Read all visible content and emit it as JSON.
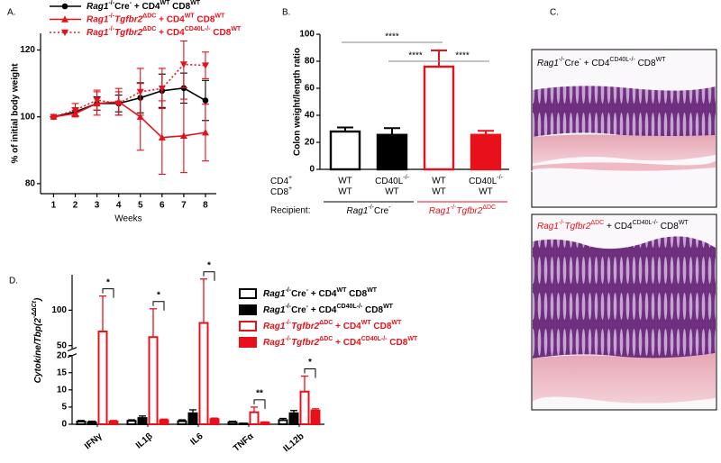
{
  "chart_data": [
    {
      "type": "line",
      "panel_label": "A.",
      "y_label": "% of initial body weight",
      "x_label": "Weeks",
      "x": [
        1,
        2,
        3,
        4,
        5,
        6,
        7,
        8
      ],
      "xlim": [
        0.4,
        8.5
      ],
      "xticks": [
        1,
        2,
        3,
        4,
        5,
        6,
        7,
        8
      ],
      "ylim": [
        77,
        125
      ],
      "yticks": [
        80,
        100,
        120
      ],
      "series": [
        {
          "name": [
            {
              "text": "Rag1",
              "italic": true
            },
            {
              "text": "-/-",
              "sup": true
            },
            "Cre",
            {
              "text": "-",
              "sup": true
            },
            " + CD4",
            {
              "text": "WT",
              "sup": true
            },
            "  CD8",
            {
              "text": "WT",
              "sup": true
            }
          ],
          "color": "#000000",
          "line_style": "solid",
          "marker": "circle",
          "values": [
            100,
            101.5,
            104,
            104,
            105.7,
            107.8,
            108.6,
            104.9
          ],
          "errors": [
            0,
            1.2,
            2,
            2.5,
            4.5,
            5,
            4.5,
            6
          ]
        },
        {
          "name": [
            {
              "text": "Rag1",
              "italic": true
            },
            {
              "text": "-/-",
              "sup": true
            },
            {
              "text": "Tgfbr2",
              "italic": true
            },
            {
              "text": "ΔDC",
              "sup": true
            },
            " + CD4",
            {
              "text": "WT",
              "sup": true
            },
            " CD8",
            {
              "text": "WT",
              "sup": true
            }
          ],
          "color": "#e8101a",
          "line_style": "solid",
          "marker": "triangle-up",
          "values": [
            100,
            101,
            104,
            104.5,
            100,
            93.8,
            94.3,
            95.3
          ],
          "errors": [
            0,
            1,
            3.5,
            4,
            10,
            11,
            11,
            8.5
          ]
        },
        {
          "name": [
            {
              "text": "Rag1",
              "italic": true
            },
            {
              "text": "-/-",
              "sup": true
            },
            {
              "text": "Tgfbr2",
              "italic": true
            },
            {
              "text": "ΔDC",
              "sup": true
            },
            " + CD4",
            {
              "text": "CD40L-/-",
              "sup": true
            },
            " CD8",
            {
              "text": "WT",
              "sup": true
            }
          ],
          "color": "#e8101a",
          "line_style": "dotted",
          "marker": "triangle-down",
          "values": [
            100,
            102,
            105,
            104,
            107.5,
            108.5,
            115.7,
            115.4
          ],
          "errors": [
            0,
            2,
            3,
            3.5,
            7,
            6,
            7,
            4
          ]
        }
      ]
    },
    {
      "type": "bar",
      "panel_label": "B.",
      "y_label": "Colon weight/length ratio",
      "ylim": [
        0,
        100
      ],
      "yticks": [
        0,
        20,
        40,
        60,
        80,
        100
      ],
      "row_labels": [
        [
          "CD4",
          {
            "text": "+",
            "sup": true
          }
        ],
        [
          "CD8",
          {
            "text": "+",
            "sup": true
          }
        ]
      ],
      "categories": [
        [
          "WT",
          "WT"
        ],
        [
          [
            "CD40L",
            {
              "text": "-/-",
              "sup": true
            }
          ],
          "WT"
        ],
        [
          "WT",
          "WT"
        ],
        [
          [
            "CD40L",
            {
              "text": "-/-",
              "sup": true
            }
          ],
          "WT"
        ]
      ],
      "values": [
        28,
        25.5,
        76,
        25.5
      ],
      "errors": [
        3,
        5,
        12,
        3
      ],
      "colors": [
        "#000000",
        "#000000",
        "#e8101a",
        "#e8101a"
      ],
      "filled": [
        false,
        true,
        false,
        true
      ],
      "group_title": "Recipient:",
      "groups": [
        {
          "label": [
            {
              "text": "Rag1",
              "italic": true
            },
            {
              "text": "-/-",
              "sup": true
            },
            "Cre",
            {
              "text": "-",
              "sup": true
            }
          ],
          "members": [
            0,
            1
          ],
          "color": "#000000"
        },
        {
          "label": [
            {
              "text": "Rag1",
              "italic": true
            },
            {
              "text": "-/-",
              "sup": true
            },
            {
              "text": "Tgfbr2",
              "italic": true
            },
            {
              "text": "ΔDC",
              "sup": true
            }
          ],
          "members": [
            2,
            3
          ],
          "color": "#e8101a"
        }
      ],
      "annotations": [
        {
          "text": "****",
          "from": 0,
          "to": 2
        },
        {
          "text": "****",
          "from": 1,
          "to": 2
        },
        {
          "text": "****",
          "from": 2,
          "to": 3
        }
      ]
    },
    {
      "type": "bar",
      "panel_label": "D.",
      "y_label": [
        {
          "text": "Cytokine/Tbp(2",
          "italic": true
        },
        {
          "text": "-ΔΔCt",
          "sup": true,
          "italic": true
        },
        {
          "text": ")",
          "italic": true
        }
      ],
      "categories": [
        "IFNγ",
        "IL1β",
        "IL6",
        "TNFα",
        "IL12b"
      ],
      "ylim": [
        0,
        150
      ],
      "y_break": [
        20,
        45
      ],
      "yticks": [
        0,
        5,
        10,
        15,
        20,
        50,
        100
      ],
      "series": [
        {
          "name": [
            {
              "text": "Rag1",
              "italic": true
            },
            {
              "text": "-/-",
              "sup": true
            },
            "Cre",
            {
              "text": "-",
              "sup": true
            },
            " + CD4",
            {
              "text": "WT",
              "sup": true
            },
            "  CD8",
            {
              "text": "WT",
              "sup": true
            }
          ],
          "color": "#000000",
          "filled": false,
          "values": [
            0.8,
            1,
            0.9,
            0.6,
            1.2
          ],
          "errors": [
            0.3,
            0.3,
            0.4,
            0.3,
            0.5
          ]
        },
        {
          "name": [
            {
              "text": "Rag1",
              "italic": true
            },
            {
              "text": "-/-",
              "sup": true
            },
            "Cre",
            {
              "text": "-",
              "sup": true
            },
            " + CD4",
            {
              "text": "CD40L-/-",
              "sup": true
            },
            " CD8",
            {
              "text": "WT",
              "sup": true
            }
          ],
          "color": "#000000",
          "filled": true,
          "values": [
            0.6,
            1.8,
            3.2,
            0.2,
            3.2
          ],
          "errors": [
            0.3,
            0.6,
            1,
            0.1,
            0.8
          ]
        },
        {
          "name": [
            {
              "text": "Rag1",
              "italic": true
            },
            {
              "text": "-/-",
              "sup": true
            },
            {
              "text": "Tgfbr2",
              "italic": true
            },
            {
              "text": "ΔDC",
              "sup": true
            },
            " + CD4",
            {
              "text": "WT",
              "sup": true
            },
            " CD8",
            {
              "text": "WT",
              "sup": true
            }
          ],
          "color": "#e8101a",
          "filled": false,
          "values": [
            70,
            62,
            82,
            3.5,
            9.5
          ],
          "errors": [
            50,
            40,
            62,
            1.5,
            4.5
          ]
        },
        {
          "name": [
            {
              "text": "Rag1",
              "italic": true
            },
            {
              "text": "-/-",
              "sup": true
            },
            {
              "text": "Tgfbr2",
              "italic": true
            },
            {
              "text": "ΔDC",
              "sup": true
            },
            " + CD4",
            {
              "text": "CD40L-/-",
              "sup": true
            },
            " CD8",
            {
              "text": "WT",
              "sup": true
            }
          ],
          "color": "#e8101a",
          "filled": true,
          "values": [
            0.8,
            1.2,
            1.5,
            0.5,
            4
          ],
          "errors": [
            0.3,
            0.3,
            0.3,
            0.2,
            0.5
          ]
        }
      ],
      "annotations": [
        {
          "text": "*",
          "category": 0,
          "from": 2,
          "to": 3
        },
        {
          "text": "*",
          "category": 1,
          "from": 2,
          "to": 3
        },
        {
          "text": "*",
          "category": 2,
          "from": 2,
          "to": 3
        },
        {
          "text": "**",
          "category": 3,
          "from": 2,
          "to": 3
        },
        {
          "text": "*",
          "category": 4,
          "from": 2,
          "to": 3
        }
      ]
    }
  ],
  "images": {
    "panel_label": "C.",
    "items": [
      {
        "caption": [
          {
            "text": "Rag1",
            "italic": true
          },
          {
            "text": "-/-",
            "sup": true
          },
          "Cre",
          {
            "text": "-",
            "sup": true
          },
          " + CD4",
          {
            "text": "CD40L-/-",
            "sup": true
          },
          " CD8",
          {
            "text": "WT",
            "sup": true
          }
        ]
      },
      {
        "caption": [
          {
            "text": "Rag1",
            "italic": true,
            "color": "#e8101a"
          },
          {
            "text": "-/-",
            "sup": true,
            "color": "#e8101a"
          },
          {
            "text": "Tgfbr2",
            "italic": true,
            "color": "#e8101a"
          },
          {
            "text": "ΔDC",
            "sup": true,
            "color": "#e8101a"
          },
          " + CD4",
          {
            "text": "CD40L-/-",
            "sup": true
          },
          " CD8",
          {
            "text": "WT",
            "sup": true
          }
        ]
      }
    ]
  }
}
